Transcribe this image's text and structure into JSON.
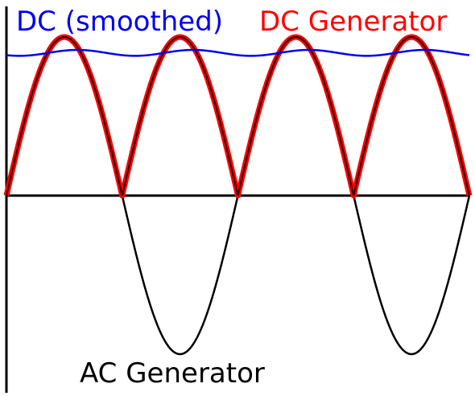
{
  "labels": {
    "dc_smoothed": "DC (smoothed)",
    "dc_generator": "DC Generator",
    "ac_generator": "AC Generator"
  },
  "colors": {
    "dc_smoothed": "#0000ee",
    "dc_generator": "#ff0000",
    "ac_generator": "#000000",
    "axes": "#000000"
  },
  "waves": {
    "cycles_shown": 2,
    "ac": {
      "type": "sine",
      "amplitude": 1
    },
    "dc_generator": {
      "type": "rectified-sine",
      "amplitude": 1
    },
    "dc_smoothed": {
      "type": "ripple",
      "level": 0.9,
      "ripple": 0.08
    }
  }
}
